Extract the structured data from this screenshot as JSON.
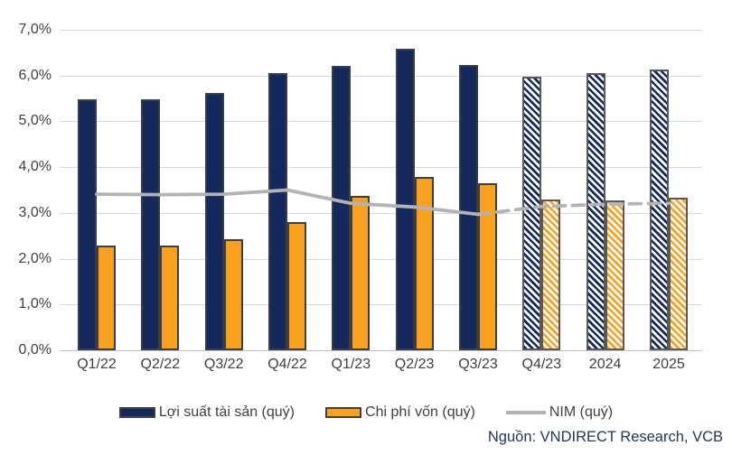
{
  "source_note": "Nguồn: VNDIRECT Research, VCB",
  "legend": [
    {
      "label": "Lợi suất tài sản (quý)",
      "swatch": "bar",
      "color": "#14295c"
    },
    {
      "label": "Chi phí vốn (quý)",
      "swatch": "bar",
      "color": "#f9a01f"
    },
    {
      "label": "NIM (quý)",
      "swatch": "line",
      "color": "#b3b3b3"
    }
  ],
  "chart_data": {
    "type": "bar",
    "subtype": "grouped bars with line overlay, forecast periods hatched / dashed",
    "categories": [
      "Q1/22",
      "Q2/22",
      "Q3/22",
      "Q4/22",
      "Q1/23",
      "Q2/23",
      "Q3/23",
      "Q4/23",
      "2024",
      "2025"
    ],
    "series": [
      {
        "name": "Lợi suất tài sản (quý)",
        "type": "bar",
        "color": "#14295c",
        "values": [
          5.49,
          5.49,
          5.63,
          6.06,
          6.22,
          6.59,
          6.24,
          5.97,
          6.05,
          6.13
        ]
      },
      {
        "name": "Chi phí vốn (quý)",
        "type": "bar",
        "color": "#f9a01f",
        "values": [
          2.28,
          2.29,
          2.43,
          2.8,
          3.38,
          3.78,
          3.64,
          3.3,
          3.27,
          3.34
        ]
      },
      {
        "name": "NIM (quý)",
        "type": "line",
        "color": "#b3b3b3",
        "values": [
          3.41,
          3.4,
          3.41,
          3.5,
          3.21,
          3.13,
          2.97,
          3.14,
          3.19,
          3.21
        ]
      }
    ],
    "forecast_start_index": 7,
    "y_ticks": [
      "0,0%",
      "1,0%",
      "2,0%",
      "3,0%",
      "4,0%",
      "5,0%",
      "6,0%",
      "7,0%"
    ],
    "ylim": [
      0,
      7
    ],
    "xlabel": "",
    "ylabel": "",
    "grid": true,
    "legend_position": "bottom"
  }
}
